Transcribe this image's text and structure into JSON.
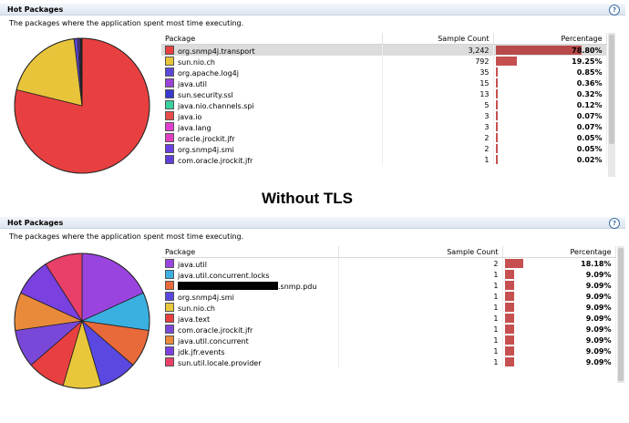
{
  "panel1": {
    "title": "Hot Packages",
    "description": "The packages where the application spent most time executing.",
    "columns": [
      "Package",
      "Sample Count",
      "Percentage"
    ],
    "rows": [
      {
        "name": "org.snmp4j.transport",
        "count": "3,242",
        "pct": "78.80%",
        "color": "#e84040",
        "fraction": 0.788,
        "selected": true
      },
      {
        "name": "sun.nio.ch",
        "count": "792",
        "pct": "19.25%",
        "color": "#e8c43a",
        "fraction": 0.1925
      },
      {
        "name": "org.apache.log4j",
        "count": "35",
        "pct": "0.85%",
        "color": "#5a48d8",
        "fraction": 0.0085
      },
      {
        "name": "java.util",
        "count": "15",
        "pct": "0.36%",
        "color": "#9a44d8",
        "fraction": 0.0036
      },
      {
        "name": "sun.security.ssl",
        "count": "13",
        "pct": "0.32%",
        "color": "#3a3ad0",
        "fraction": 0.0032
      },
      {
        "name": "java.nio.channels.spi",
        "count": "5",
        "pct": "0.12%",
        "color": "#3ad0a0",
        "fraction": 0.0012
      },
      {
        "name": "java.io",
        "count": "3",
        "pct": "0.07%",
        "color": "#e84a4a",
        "fraction": 0.0007
      },
      {
        "name": "java.lang",
        "count": "3",
        "pct": "0.07%",
        "color": "#e040d0",
        "fraction": 0.0007
      },
      {
        "name": "oracle.jrockit.jfr",
        "count": "2",
        "pct": "0.05%",
        "color": "#e040c0",
        "fraction": 0.0005
      },
      {
        "name": "org.snmp4j.smi",
        "count": "2",
        "pct": "0.05%",
        "color": "#6a40e0",
        "fraction": 0.0005
      },
      {
        "name": "com.oracle.jrockit.jfr",
        "count": "1",
        "pct": "0.02%",
        "color": "#6040d8",
        "fraction": 0.0002
      }
    ]
  },
  "middle_label": "Without TLS",
  "panel2": {
    "title": "Hot Packages",
    "description": "The packages where the application spent most time executing.",
    "columns": [
      "Package",
      "Sample Count",
      "Percentage"
    ],
    "rows": [
      {
        "name": "java.util",
        "count": "2",
        "pct": "18.18%",
        "color": "#9a44e0",
        "fraction": 0.1818
      },
      {
        "name": "java.util.concurrent.locks",
        "count": "1",
        "pct": "9.09%",
        "color": "#3ab0e0",
        "fraction": 0.0909
      },
      {
        "name": ".snmp.pdu",
        "count": "1",
        "pct": "9.09%",
        "color": "#e86a3a",
        "fraction": 0.0909,
        "redacted": true
      },
      {
        "name": "org.snmp4j.smi",
        "count": "1",
        "pct": "9.09%",
        "color": "#5a48e0",
        "fraction": 0.0909
      },
      {
        "name": "sun.nio.ch",
        "count": "1",
        "pct": "9.09%",
        "color": "#e8c83a",
        "fraction": 0.0909
      },
      {
        "name": "java.text",
        "count": "1",
        "pct": "9.09%",
        "color": "#e84040",
        "fraction": 0.0909
      },
      {
        "name": "com.oracle.jrockit.jfr",
        "count": "1",
        "pct": "9.09%",
        "color": "#7a48d8",
        "fraction": 0.0909
      },
      {
        "name": "java.util.concurrent",
        "count": "1",
        "pct": "9.09%",
        "color": "#e88a3a",
        "fraction": 0.0909
      },
      {
        "name": "jdk.jfr.events",
        "count": "1",
        "pct": "9.09%",
        "color": "#7a40e0",
        "fraction": 0.0909
      },
      {
        "name": "sun.util.locale.provider",
        "count": "1",
        "pct": "9.09%",
        "color": "#e84068",
        "fraction": 0.0909
      }
    ]
  }
}
